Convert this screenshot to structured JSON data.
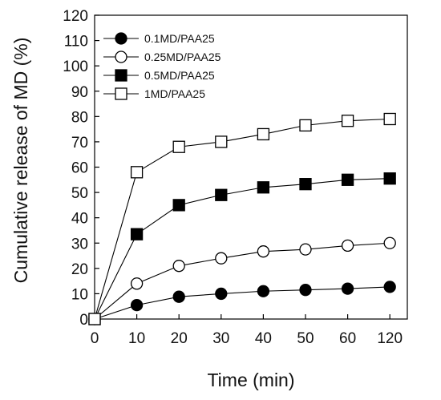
{
  "chart_data": {
    "type": "line",
    "xlabel": "Time (min)",
    "ylabel": "Cumulative release of MD (%)",
    "categories": [
      "0",
      "10",
      "20",
      "30",
      "40",
      "50",
      "60",
      "120"
    ],
    "ylim": [
      0,
      120
    ],
    "yticks": [
      "0",
      "10",
      "20",
      "30",
      "40",
      "50",
      "60",
      "70",
      "80",
      "90",
      "100",
      "110",
      "120"
    ],
    "legend_position": "top-left",
    "grid": false,
    "series": [
      {
        "name": "0.1MD/PAA25",
        "marker": "filled-circle",
        "values": [
          0,
          5.5,
          8.8,
          10,
          11,
          11.5,
          12,
          12.7
        ]
      },
      {
        "name": "0.25MD/PAA25",
        "marker": "open-circle",
        "values": [
          0,
          14,
          21,
          24,
          26.7,
          27.5,
          29,
          30
        ]
      },
      {
        "name": "0.5MD/PAA25",
        "marker": "filled-square",
        "values": [
          0,
          33.5,
          45,
          49,
          52,
          53.3,
          55,
          55.5
        ]
      },
      {
        "name": "1MD/PAA25",
        "marker": "open-square",
        "values": [
          0,
          58,
          68,
          70,
          73,
          76.5,
          78.3,
          79
        ]
      }
    ]
  }
}
